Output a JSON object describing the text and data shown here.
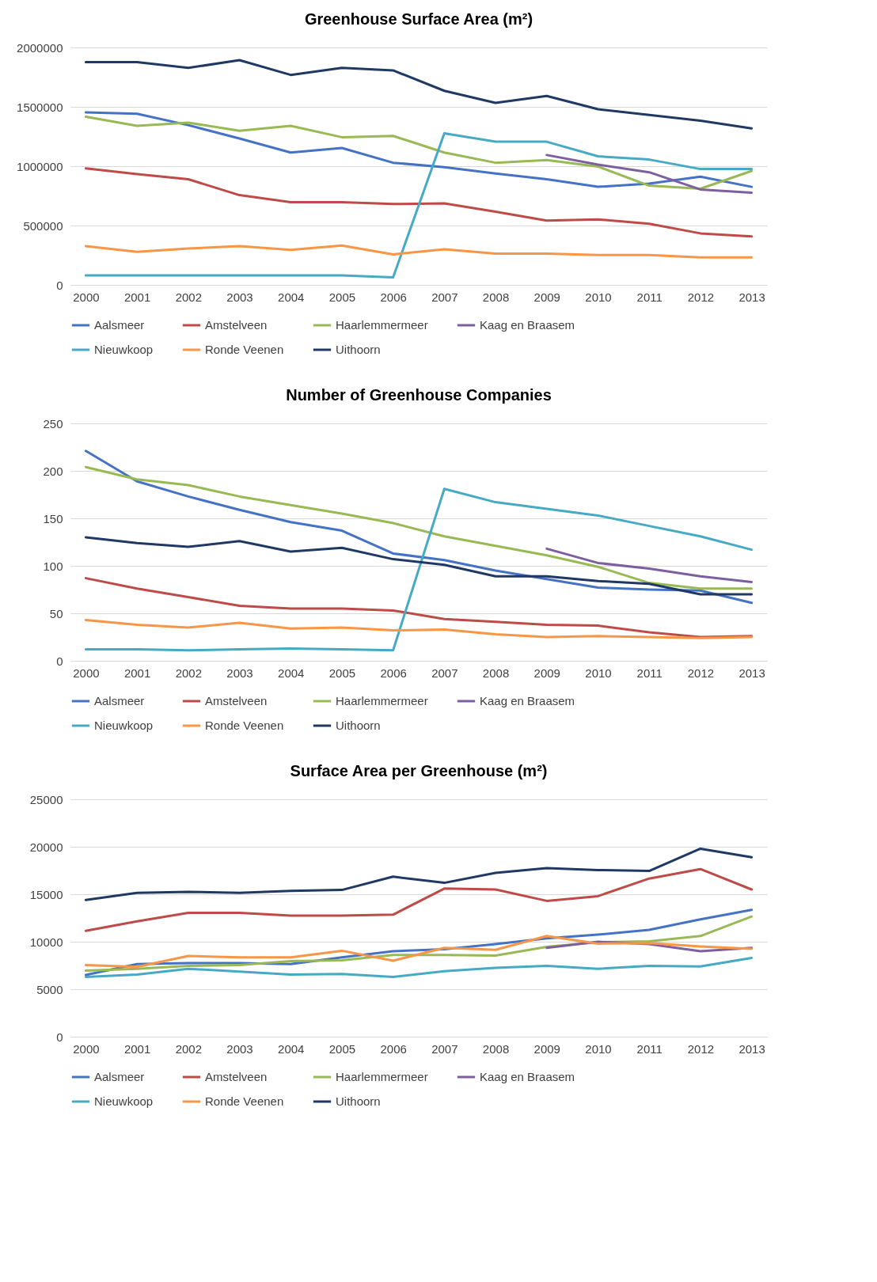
{
  "chart_data": [
    {
      "type": "line",
      "title": "Greenhouse Surface Area (m²)",
      "categories": [
        "2000",
        "2001",
        "2002",
        "2003",
        "2004",
        "2005",
        "2006",
        "2007",
        "2008",
        "2009",
        "2010",
        "2011",
        "2012",
        "2013"
      ],
      "ylim": [
        0,
        2000000
      ],
      "yticks": [
        0,
        500000,
        1000000,
        1500000,
        2000000
      ],
      "grid": "y",
      "legend": "bottom",
      "series": [
        {
          "name": "Aalsmeer",
          "color": "#4472c4",
          "values": [
            1453000,
            1442000,
            1346000,
            1233000,
            1115000,
            1153000,
            1029000,
            992000,
            938000,
            890000,
            826000,
            853000,
            912000,
            826000
          ]
        },
        {
          "name": "Amstelveen",
          "color": "#be4b48",
          "values": [
            981000,
            933000,
            890000,
            756000,
            697000,
            697000,
            681000,
            686000,
            617000,
            542000,
            552000,
            515000,
            434000,
            408000
          ]
        },
        {
          "name": "Haarlemmermeer",
          "color": "#98b954",
          "values": [
            1416000,
            1340000,
            1367000,
            1298000,
            1340000,
            1244000,
            1255000,
            1115000,
            1029000,
            1051000,
            997000,
            836000,
            810000,
            960000
          ]
        },
        {
          "name": "Kaag en Braasem",
          "color": "#7d5fa0",
          "values": [
            null,
            null,
            null,
            null,
            null,
            null,
            null,
            null,
            null,
            1094000,
            1013000,
            949000,
            804000,
            777000
          ]
        },
        {
          "name": "Nieuwkoop",
          "color": "#46aac5",
          "values": [
            80000,
            80000,
            80000,
            80000,
            80000,
            80000,
            64000,
            1276000,
            1206000,
            1206000,
            1083000,
            1056000,
            976000,
            976000
          ]
        },
        {
          "name": "Ronde Veenen",
          "color": "#f79646",
          "values": [
            327000,
            279000,
            306000,
            327000,
            295000,
            332000,
            257000,
            300000,
            263000,
            263000,
            252000,
            252000,
            231000,
            231000
          ]
        },
        {
          "name": "Uithoorn",
          "color": "#1f3864",
          "values": [
            1877000,
            1877000,
            1828000,
            1893000,
            1769000,
            1828000,
            1807000,
            1635000,
            1533000,
            1592000,
            1480000,
            1432000,
            1383000,
            1319000
          ]
        }
      ]
    },
    {
      "type": "line",
      "title": "Number of Greenhouse Companies",
      "categories": [
        "2000",
        "2001",
        "2002",
        "2003",
        "2004",
        "2005",
        "2006",
        "2007",
        "2008",
        "2009",
        "2010",
        "2011",
        "2012",
        "2013"
      ],
      "ylim": [
        0,
        250
      ],
      "yticks": [
        0,
        50,
        100,
        150,
        200,
        250
      ],
      "grid": "y",
      "legend": "bottom",
      "series": [
        {
          "name": "Aalsmeer",
          "color": "#4472c4",
          "values": [
            221,
            189,
            173,
            159,
            146,
            137,
            113,
            106,
            95,
            86,
            77,
            75,
            74,
            61
          ]
        },
        {
          "name": "Amstelveen",
          "color": "#be4b48",
          "values": [
            87,
            76,
            67,
            58,
            55,
            55,
            53,
            44,
            41,
            38,
            37,
            30,
            25,
            26
          ]
        },
        {
          "name": "Haarlemmermeer",
          "color": "#98b954",
          "values": [
            204,
            191,
            185,
            173,
            164,
            155,
            145,
            131,
            121,
            111,
            99,
            82,
            76,
            76
          ]
        },
        {
          "name": "Kaag en Braasem",
          "color": "#7d5fa0",
          "values": [
            null,
            null,
            null,
            null,
            null,
            null,
            null,
            null,
            null,
            118,
            103,
            97,
            89,
            83
          ]
        },
        {
          "name": "Nieuwkoop",
          "color": "#46aac5",
          "values": [
            12,
            12,
            11,
            12,
            13,
            12,
            11,
            181,
            167,
            160,
            153,
            142,
            131,
            117
          ]
        },
        {
          "name": "Ronde Veenen",
          "color": "#f79646",
          "values": [
            43,
            38,
            35,
            40,
            34,
            35,
            32,
            33,
            28,
            25,
            26,
            25,
            24,
            25
          ]
        },
        {
          "name": "Uithoorn",
          "color": "#1f3864",
          "values": [
            130,
            124,
            120,
            126,
            115,
            119,
            107,
            101,
            89,
            89,
            84,
            81,
            70,
            70
          ]
        }
      ]
    },
    {
      "type": "line",
      "title": "Surface Area per Greenhouse (m²)",
      "categories": [
        "2000",
        "2001",
        "2002",
        "2003",
        "2004",
        "2005",
        "2006",
        "2007",
        "2008",
        "2009",
        "2010",
        "2011",
        "2012",
        "2013"
      ],
      "ylim": [
        0,
        25000
      ],
      "yticks": [
        0,
        5000,
        10000,
        15000,
        20000,
        25000
      ],
      "grid": "y",
      "legend": "bottom",
      "series": [
        {
          "name": "Aalsmeer",
          "color": "#4472c4",
          "values": [
            6500,
            7650,
            7750,
            7750,
            7650,
            8350,
            9000,
            9200,
            9750,
            10350,
            10750,
            11250,
            12350,
            13350
          ]
        },
        {
          "name": "Amstelveen",
          "color": "#be4b48",
          "values": [
            11150,
            12150,
            13050,
            13050,
            12750,
            12750,
            12850,
            15600,
            15500,
            14300,
            14800,
            16650,
            17650,
            15500
          ]
        },
        {
          "name": "Haarlemmermeer",
          "color": "#98b954",
          "values": [
            6950,
            7150,
            7450,
            7550,
            7950,
            8050,
            8600,
            8600,
            8550,
            9450,
            9950,
            10050,
            10600,
            12650
          ]
        },
        {
          "name": "Kaag en Braasem",
          "color": "#7d5fa0",
          "values": [
            null,
            null,
            null,
            null,
            null,
            null,
            null,
            null,
            null,
            9350,
            10000,
            9750,
            9000,
            9350
          ]
        },
        {
          "name": "Nieuwkoop",
          "color": "#46aac5",
          "values": [
            6300,
            6550,
            7150,
            6850,
            6550,
            6600,
            6300,
            6900,
            7250,
            7450,
            7150,
            7450,
            7400,
            8300
          ]
        },
        {
          "name": "Ronde Veenen",
          "color": "#f79646",
          "values": [
            7550,
            7350,
            8500,
            8350,
            8350,
            9050,
            8000,
            9350,
            9150,
            10600,
            9800,
            9850,
            9500,
            9250
          ]
        },
        {
          "name": "Uithoorn",
          "color": "#1f3864",
          "values": [
            14400,
            15150,
            15250,
            15150,
            15350,
            15450,
            16850,
            16200,
            17250,
            17750,
            17550,
            17450,
            19800,
            18900
          ]
        }
      ]
    }
  ]
}
